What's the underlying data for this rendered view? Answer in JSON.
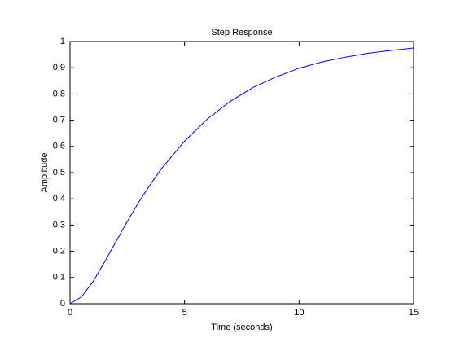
{
  "chart_data": {
    "type": "line",
    "title": "Step Response",
    "x_label": "Time (seconds)",
    "y_label": "Amplitude",
    "x": [
      0,
      0.5,
      1,
      1.5,
      2,
      2.5,
      3,
      3.5,
      4,
      5,
      6,
      7,
      8,
      9,
      10,
      11,
      12,
      13,
      14,
      15
    ],
    "series": [
      {
        "name": "Step Response",
        "color": "#0000ff",
        "values": [
          0,
          0.026,
          0.084,
          0.158,
          0.236,
          0.314,
          0.387,
          0.454,
          0.516,
          0.62,
          0.705,
          0.772,
          0.825,
          0.865,
          0.898,
          0.922,
          0.94,
          0.955,
          0.966,
          0.975
        ]
      }
    ],
    "xlim": [
      0,
      15
    ],
    "xticks": [
      0,
      5,
      10,
      15
    ],
    "ylim": [
      0,
      1
    ],
    "yticks": [
      0,
      0.1,
      0.2,
      0.3,
      0.4,
      0.5,
      0.6,
      0.7,
      0.8,
      0.9,
      1
    ],
    "grid": false
  }
}
